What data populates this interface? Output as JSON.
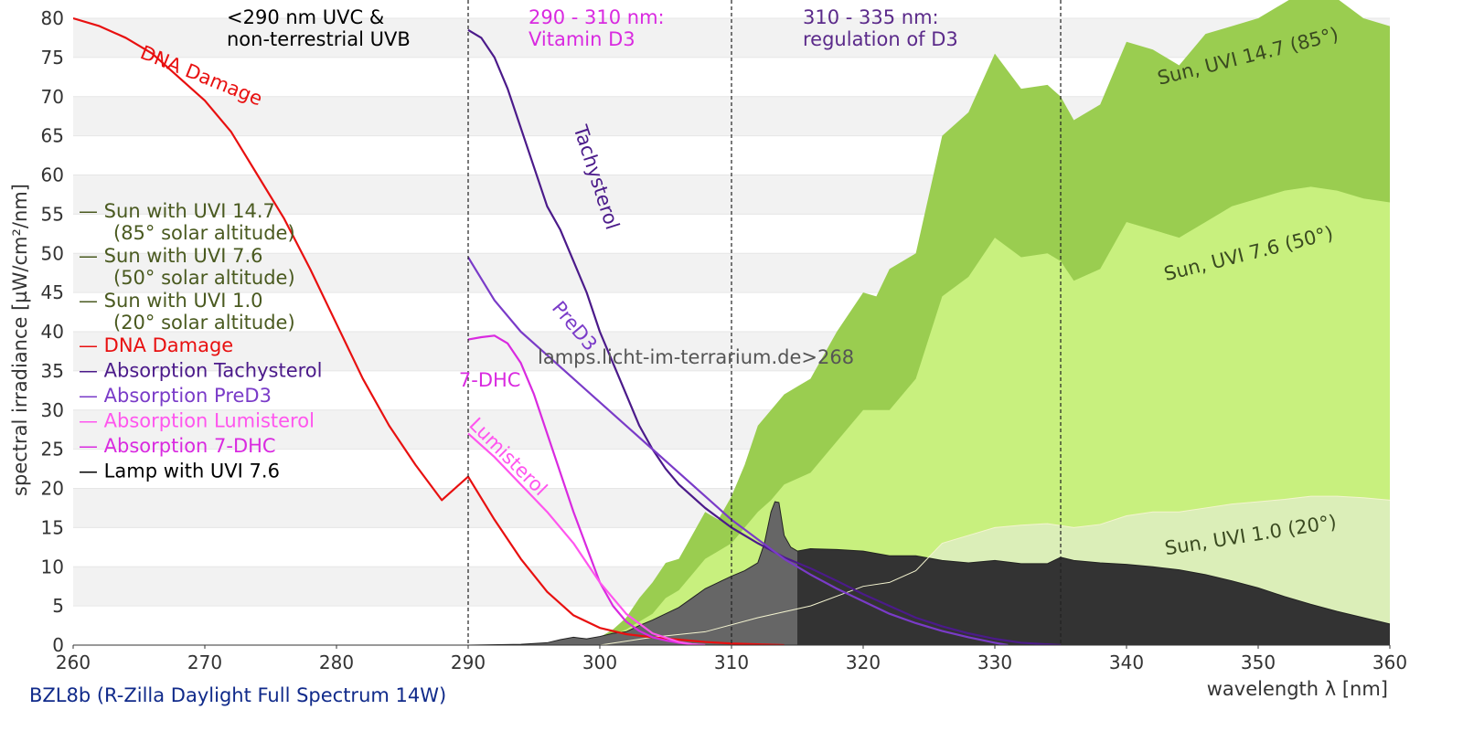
{
  "chart_data": {
    "type": "area",
    "title": "",
    "xlabel": "wavelength λ [nm]",
    "ylabel": "spectral irradiance [µW/cm²/nm]",
    "xlim": [
      260,
      360
    ],
    "ylim": [
      0,
      80
    ],
    "xticks": [
      "260",
      "270",
      "280",
      "290",
      "300",
      "310",
      "320",
      "330",
      "340",
      "350",
      "360"
    ],
    "yticks": [
      "0",
      "5",
      "10",
      "15",
      "20",
      "25",
      "30",
      "35",
      "40",
      "45",
      "50",
      "55",
      "60",
      "65",
      "70",
      "75",
      "80"
    ],
    "grid": "horizontal bands",
    "legend_position": "left",
    "caption": "BZL8b (R-Zilla Daylight Full Spectrum 14W)",
    "watermark": "lamps.licht-im-terrarium.de>268",
    "colors": {
      "sun_high": "#9acd50",
      "sun_mid": "#c8f07e",
      "sun_low": "#dbeeb8",
      "lamp_uvb": "#666666",
      "lamp": "#333333",
      "dna": "#e81010",
      "tachysterol": "#4b1a8a",
      "pred3": "#7a3bc8",
      "lumisterol": "#ff55ee",
      "dhc": "#d92ae0",
      "legend_sun": "#4a5a20"
    },
    "regions": [
      {
        "x": 290,
        "text_lines": [
          "<290 nm UVC &",
          "non-terrestrial UVB"
        ],
        "color": "#000000"
      },
      {
        "x": 310,
        "text_lines": [
          "290 - 310 nm:",
          "Vitamin D3"
        ],
        "color": "#d92ae0"
      },
      {
        "x": 335,
        "text_lines": [
          "310 - 335 nm:",
          "regulation of D3"
        ],
        "color": "#5b2a8a"
      }
    ],
    "legend": [
      {
        "name": "— Sun with UVI 14.7",
        "sub": "(85° solar altitude)",
        "color": "#4a5a20"
      },
      {
        "name": "— Sun with UVI 7.6",
        "sub": "(50° solar altitude)",
        "color": "#4a5a20"
      },
      {
        "name": "— Sun with UVI 1.0",
        "sub": "(20° solar altitude)",
        "color": "#4a5a20"
      },
      {
        "name": "— DNA Damage",
        "color": "#e81010"
      },
      {
        "name": "— Absorption Tachysterol",
        "color": "#4b1a8a"
      },
      {
        "name": "— Absorption PreD3",
        "color": "#7a3bc8"
      },
      {
        "name": "— Absorption Lumisterol",
        "color": "#ff55ee"
      },
      {
        "name": "— Absorption 7-DHC",
        "color": "#d92ae0"
      },
      {
        "name": "— Lamp with UVI 7.6",
        "color": "#000000"
      }
    ],
    "labels": [
      {
        "text": "DNA Damage",
        "x": 265,
        "y": 75,
        "rotate": 22,
        "color": "#e81010"
      },
      {
        "text": "Tachysterol",
        "x": 298,
        "y": 66,
        "rotate": 72,
        "color": "#4b1a8a"
      },
      {
        "text": "PreD3",
        "x": 296.3,
        "y": 43,
        "rotate": 50,
        "color": "#7a3bc8"
      },
      {
        "text": "7-DHC",
        "x": 289.3,
        "y": 33,
        "rotate": 0,
        "color": "#d92ae0"
      },
      {
        "text": "Lumisterol",
        "x": 290,
        "y": 28,
        "rotate": 45,
        "color": "#ff55ee"
      },
      {
        "text": "Sun, UVI 14.7 (85°)",
        "x": 342.5,
        "y": 71.5,
        "rotate": -14,
        "color": "#3a4a20"
      },
      {
        "text": "Sun, UVI 7.6 (50°)",
        "x": 343,
        "y": 46.5,
        "rotate": -14,
        "color": "#3a4a20"
      },
      {
        "text": "Sun, UVI 1.0 (20°)",
        "x": 343,
        "y": 11.5,
        "rotate": -9,
        "color": "#3a4a20"
      }
    ],
    "series": [
      {
        "name": "Sun, UVI 14.7 (85°)",
        "kind": "area",
        "color": "#9acd50",
        "x": [
          294,
          296,
          298,
          300,
          301,
          302,
          303,
          304,
          305,
          306,
          307,
          308,
          309,
          310,
          311,
          312,
          313,
          314,
          315,
          316,
          317,
          318,
          320,
          321,
          322,
          324,
          326,
          328,
          330,
          332,
          334,
          335,
          336,
          338,
          340,
          342,
          344,
          346,
          348,
          350,
          352,
          354,
          356,
          358,
          360
        ],
        "y": [
          0,
          0.1,
          0.3,
          1,
          2,
          3.5,
          6,
          8,
          10.5,
          11,
          14,
          17,
          16,
          19,
          23,
          28,
          30,
          32,
          33,
          34,
          37,
          40,
          45,
          44.5,
          48,
          50,
          65,
          68,
          75.5,
          71,
          71.5,
          70,
          67,
          69,
          77,
          76,
          74,
          78,
          79,
          80,
          82,
          84,
          82.5,
          80,
          79
        ]
      },
      {
        "name": "Sun, UVI 7.6 (50°)",
        "kind": "area",
        "color": "#c8f07e",
        "x": [
          294,
          296,
          298,
          300,
          302,
          304,
          305,
          306,
          307,
          308,
          309,
          310,
          311,
          312,
          313,
          314,
          316,
          318,
          320,
          322,
          324,
          326,
          328,
          330,
          332,
          334,
          335,
          336,
          338,
          340,
          342,
          344,
          346,
          348,
          350,
          352,
          354,
          356,
          358,
          360
        ],
        "y": [
          0,
          0.05,
          0.2,
          0.6,
          2,
          4,
          6,
          7,
          9,
          11,
          12,
          13,
          15,
          17,
          18.5,
          20.5,
          22,
          26,
          30,
          30,
          34,
          44.5,
          47,
          52,
          49.5,
          50,
          49,
          46.5,
          48,
          54,
          53,
          52,
          54,
          56,
          57,
          58,
          58.5,
          58,
          57,
          56.5
        ]
      },
      {
        "name": "Sun, UVI 1.0 (20°)",
        "kind": "area",
        "color": "#dbeeb8",
        "x": [
          300,
          304,
          308,
          312,
          316,
          320,
          322,
          324,
          326,
          328,
          330,
          332,
          334,
          336,
          338,
          340,
          342,
          344,
          346,
          348,
          350,
          352,
          354,
          356,
          358,
          360
        ],
        "y": [
          0,
          1,
          1.7,
          3.5,
          5,
          7.5,
          8,
          9.5,
          13,
          14,
          15,
          15.3,
          15.5,
          15,
          15.4,
          16.5,
          17,
          17,
          17.5,
          18,
          18.3,
          18.6,
          19,
          19,
          18.8,
          18.5
        ]
      },
      {
        "name": "Lamp with UVI 7.6",
        "kind": "area",
        "color": "#333333",
        "split_x": 315,
        "left_color": "#666666",
        "x": [
          290,
          294,
          296,
          297,
          298,
          299,
          300,
          301,
          302,
          303,
          304,
          305,
          306,
          307,
          308,
          309,
          310,
          311,
          312,
          312.5,
          313,
          313.3,
          313.6,
          314,
          314.5,
          315,
          316,
          318,
          320,
          322,
          324,
          326,
          328,
          330,
          332,
          334,
          335,
          336,
          338,
          340,
          342,
          344,
          346,
          348,
          350,
          352,
          354,
          356,
          358,
          360
        ],
        "y": [
          0,
          0.1,
          0.3,
          0.7,
          1,
          0.8,
          1.1,
          1.5,
          1.7,
          2.5,
          3.2,
          4,
          4.8,
          6,
          7.2,
          8,
          8.8,
          9.5,
          10.5,
          13,
          17,
          18.3,
          18.2,
          14,
          12.5,
          12,
          12.3,
          12.2,
          12,
          11.4,
          11.4,
          10.8,
          10.5,
          10.8,
          10.4,
          10.4,
          11.2,
          10.8,
          10.5,
          10.3,
          10,
          9.6,
          9,
          8.2,
          7.3,
          6.2,
          5.2,
          4.3,
          3.5,
          2.7
        ]
      },
      {
        "name": "DNA Damage",
        "kind": "line",
        "color": "#e81010",
        "x": [
          260,
          262,
          264,
          266,
          268,
          270,
          272,
          274,
          276,
          278,
          280,
          282,
          284,
          286,
          288,
          290,
          292,
          294,
          296,
          298,
          300,
          302,
          304,
          306,
          308,
          310,
          312,
          314
        ],
        "y": [
          80,
          79,
          77.5,
          75.5,
          72.5,
          69.5,
          65.5,
          60,
          54.5,
          48,
          41,
          34,
          28,
          23,
          18.5,
          21.5,
          16,
          11,
          6.8,
          3.8,
          2.2,
          1.4,
          1,
          0.7,
          0.4,
          0.2,
          0.1,
          0
        ]
      },
      {
        "name": "Absorption Tachysterol",
        "kind": "line",
        "color": "#4b1a8a",
        "x": [
          290,
          291,
          292,
          293,
          294,
          295,
          296,
          297,
          298,
          299,
          300,
          301,
          302,
          303,
          304,
          305,
          306,
          308,
          310,
          312,
          314,
          316,
          318,
          320,
          322,
          324,
          326,
          328,
          330,
          332,
          334,
          335
        ],
        "y": [
          78.5,
          77.5,
          75,
          71,
          66,
          61,
          56,
          53,
          49,
          45,
          40,
          36,
          32,
          28,
          25,
          22.5,
          20.5,
          17.5,
          15,
          13,
          11.2,
          9.8,
          8.2,
          6.5,
          5,
          3.5,
          2.4,
          1.5,
          0.8,
          0.3,
          0.1,
          0
        ]
      },
      {
        "name": "Absorption PreD3",
        "kind": "line",
        "color": "#7a3bc8",
        "x": [
          290,
          292,
          294,
          296,
          298,
          300,
          302,
          304,
          306,
          308,
          310,
          312,
          314,
          316,
          318,
          320,
          322,
          324,
          326,
          328,
          330,
          331
        ],
        "y": [
          49.5,
          44,
          40,
          37,
          34,
          31,
          28,
          25,
          22,
          19,
          16,
          13.5,
          11,
          9,
          7.2,
          5.6,
          4,
          2.8,
          1.8,
          1,
          0.3,
          0
        ]
      },
      {
        "name": "Absorption 7-DHC",
        "kind": "line",
        "color": "#d92ae0",
        "x": [
          290,
          291,
          292,
          293,
          294,
          295,
          296,
          297,
          298,
          299,
          300,
          301,
          302,
          303,
          304,
          305,
          306,
          307,
          308
        ],
        "y": [
          39,
          39.3,
          39.5,
          38.5,
          36,
          32,
          27,
          22,
          17,
          12.5,
          8,
          5,
          3,
          1.8,
          1,
          0.6,
          0.3,
          0.1,
          0
        ]
      },
      {
        "name": "Absorption Lumisterol",
        "kind": "line",
        "color": "#ff55ee",
        "x": [
          290,
          292,
          294,
          296,
          298,
          300,
          302,
          304,
          306,
          307,
          308
        ],
        "y": [
          27,
          24,
          20.5,
          17,
          13,
          8,
          4,
          1.5,
          0.4,
          0.1,
          0
        ]
      }
    ]
  }
}
